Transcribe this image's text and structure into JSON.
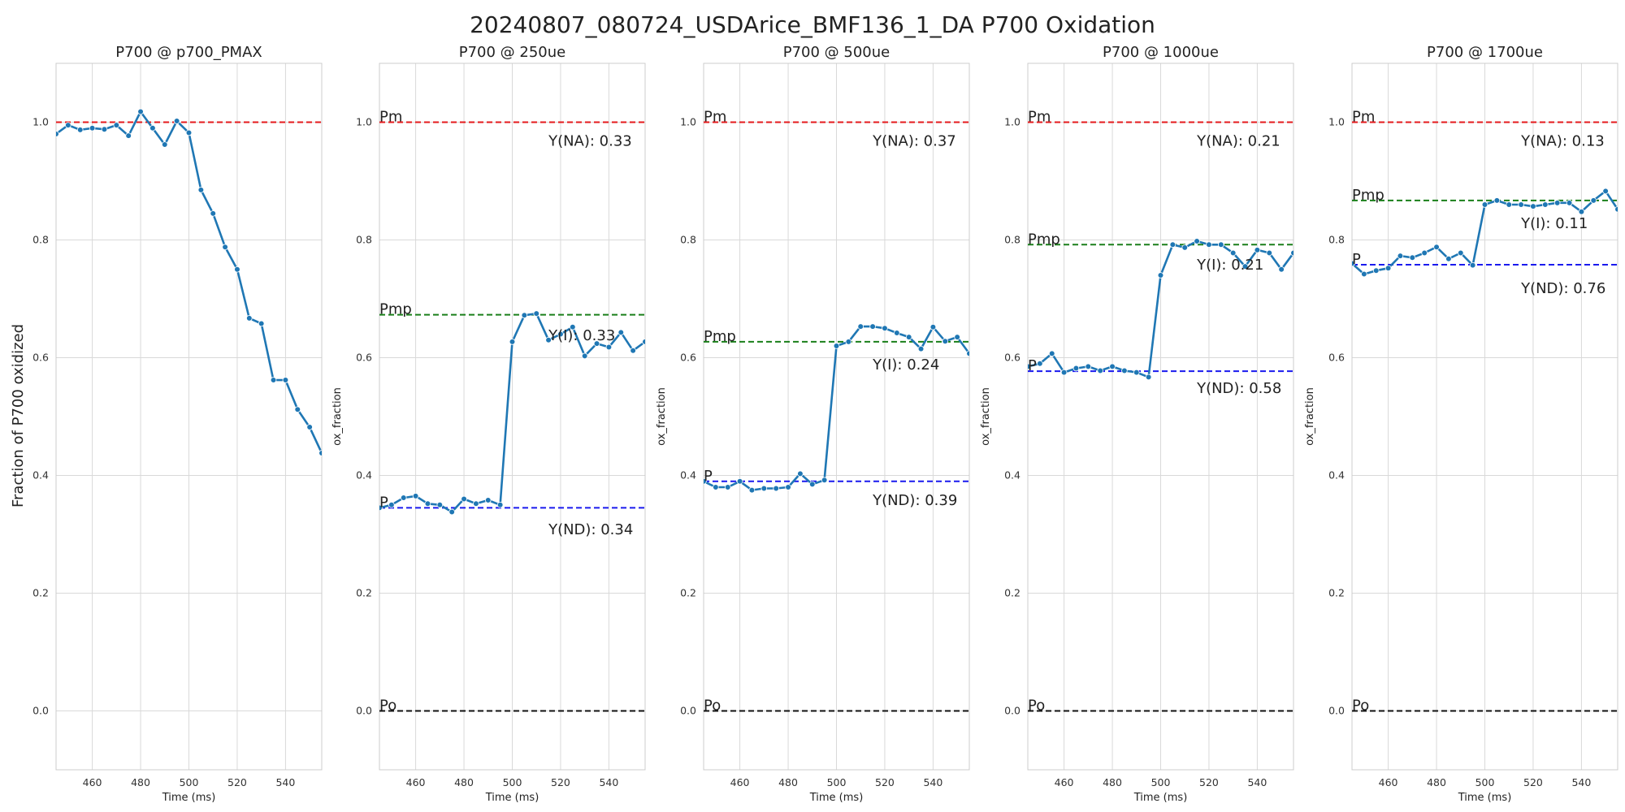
{
  "figure": {
    "suptitle": "20240807_080724_USDArice_BMF136_1_DA P700 Oxidation",
    "shared_ylabel": "Fraction of P700 oxidized"
  },
  "colors": {
    "series": "#1f77b4",
    "pm": "#e41a1c",
    "pmp": "#1a7f1a",
    "p": "#1a1aee",
    "po": "#111111",
    "grid": "#d9d9d9",
    "frame": "#cccccc"
  },
  "chart_data": [
    {
      "type": "line",
      "title": "P700 @ p700_PMAX",
      "xlabel": "Time (ms)",
      "ylabel": "",
      "xlim": [
        445,
        555
      ],
      "ylim": [
        -0.1,
        1.1
      ],
      "xticks": [
        460,
        480,
        500,
        520,
        540
      ],
      "yticks": [
        0.0,
        0.2,
        0.4,
        0.6,
        0.8,
        1.0
      ],
      "grid": true,
      "x": [
        445,
        450,
        455,
        460,
        465,
        470,
        475,
        480,
        485,
        490,
        495,
        500,
        505,
        510,
        515,
        520,
        525,
        530,
        535,
        540,
        545,
        550,
        555
      ],
      "y": [
        0.98,
        0.995,
        0.987,
        0.99,
        0.988,
        0.995,
        0.977,
        1.018,
        0.99,
        0.962,
        1.002,
        0.982,
        0.885,
        0.845,
        0.788,
        0.75,
        0.667,
        0.658,
        0.562,
        0.562,
        0.512,
        0.482,
        0.438
      ],
      "ref_lines": [
        {
          "name": "",
          "label": "",
          "value": 1.0,
          "color": "pm"
        }
      ],
      "annotations": []
    },
    {
      "type": "line",
      "title": "P700 @ 250ue",
      "xlabel": "Time (ms)",
      "ylabel": "ox_fraction",
      "xlim": [
        445,
        555
      ],
      "ylim": [
        -0.1,
        1.1
      ],
      "xticks": [
        460,
        480,
        500,
        520,
        540
      ],
      "yticks": [
        0.0,
        0.2,
        0.4,
        0.6,
        0.8,
        1.0
      ],
      "grid": true,
      "x": [
        445,
        450,
        455,
        460,
        465,
        470,
        475,
        480,
        485,
        490,
        495,
        500,
        505,
        510,
        515,
        520,
        525,
        530,
        535,
        540,
        545,
        550,
        555
      ],
      "y": [
        0.345,
        0.35,
        0.362,
        0.365,
        0.352,
        0.35,
        0.338,
        0.36,
        0.352,
        0.358,
        0.35,
        0.627,
        0.672,
        0.675,
        0.63,
        0.64,
        0.652,
        0.603,
        0.624,
        0.618,
        0.643,
        0.612,
        0.627
      ],
      "ref_lines": [
        {
          "name": "Pm",
          "label": "Pm",
          "value": 1.0,
          "color": "pm"
        },
        {
          "name": "Pmp",
          "label": "Pmp",
          "value": 0.673,
          "color": "pmp"
        },
        {
          "name": "P",
          "label": "P",
          "value": 0.345,
          "color": "p"
        },
        {
          "name": "Po",
          "label": "Po",
          "value": 0.0,
          "color": "po"
        }
      ],
      "annotations": [
        {
          "text": "Y(NA): 0.33",
          "x": 515,
          "y": 0.96
        },
        {
          "text": "Y(I): 0.33",
          "x": 515,
          "y": 0.63
        },
        {
          "text": "Y(ND): 0.34",
          "x": 515,
          "y": 0.3
        }
      ]
    },
    {
      "type": "line",
      "title": "P700 @ 500ue",
      "xlabel": "Time (ms)",
      "ylabel": "ox_fraction",
      "xlim": [
        445,
        555
      ],
      "ylim": [
        -0.1,
        1.1
      ],
      "xticks": [
        460,
        480,
        500,
        520,
        540
      ],
      "yticks": [
        0.0,
        0.2,
        0.4,
        0.6,
        0.8,
        1.0
      ],
      "grid": true,
      "x": [
        445,
        450,
        455,
        460,
        465,
        470,
        475,
        480,
        485,
        490,
        495,
        500,
        505,
        510,
        515,
        520,
        525,
        530,
        535,
        540,
        545,
        550,
        555
      ],
      "y": [
        0.39,
        0.38,
        0.38,
        0.39,
        0.375,
        0.378,
        0.378,
        0.38,
        0.403,
        0.385,
        0.392,
        0.62,
        0.627,
        0.653,
        0.653,
        0.65,
        0.642,
        0.635,
        0.615,
        0.652,
        0.628,
        0.635,
        0.607
      ],
      "ref_lines": [
        {
          "name": "Pm",
          "label": "Pm",
          "value": 1.0,
          "color": "pm"
        },
        {
          "name": "Pmp",
          "label": "Pmp",
          "value": 0.627,
          "color": "pmp"
        },
        {
          "name": "P",
          "label": "P",
          "value": 0.39,
          "color": "p"
        },
        {
          "name": "Po",
          "label": "Po",
          "value": 0.0,
          "color": "po"
        }
      ],
      "annotations": [
        {
          "text": "Y(NA): 0.37",
          "x": 515,
          "y": 0.96
        },
        {
          "text": "Y(I): 0.24",
          "x": 515,
          "y": 0.58
        },
        {
          "text": "Y(ND): 0.39",
          "x": 515,
          "y": 0.35
        }
      ]
    },
    {
      "type": "line",
      "title": "P700 @ 1000ue",
      "xlabel": "Time (ms)",
      "ylabel": "ox_fraction",
      "xlim": [
        445,
        555
      ],
      "ylim": [
        -0.1,
        1.1
      ],
      "xticks": [
        460,
        480,
        500,
        520,
        540
      ],
      "yticks": [
        0.0,
        0.2,
        0.4,
        0.6,
        0.8,
        1.0
      ],
      "grid": true,
      "x": [
        445,
        450,
        455,
        460,
        465,
        470,
        475,
        480,
        485,
        490,
        495,
        500,
        505,
        510,
        515,
        520,
        525,
        530,
        535,
        540,
        545,
        550,
        555
      ],
      "y": [
        0.585,
        0.59,
        0.607,
        0.575,
        0.582,
        0.585,
        0.578,
        0.585,
        0.578,
        0.575,
        0.567,
        0.74,
        0.792,
        0.787,
        0.798,
        0.792,
        0.792,
        0.778,
        0.755,
        0.783,
        0.778,
        0.75,
        0.778
      ],
      "ref_lines": [
        {
          "name": "Pm",
          "label": "Pm",
          "value": 1.0,
          "color": "pm"
        },
        {
          "name": "Pmp",
          "label": "Pmp",
          "value": 0.792,
          "color": "pmp"
        },
        {
          "name": "P",
          "label": "P",
          "value": 0.577,
          "color": "p"
        },
        {
          "name": "Po",
          "label": "Po",
          "value": 0.0,
          "color": "po"
        }
      ],
      "annotations": [
        {
          "text": "Y(NA): 0.21",
          "x": 515,
          "y": 0.96
        },
        {
          "text": "Y(I): 0.21",
          "x": 515,
          "y": 0.75
        },
        {
          "text": "Y(ND): 0.58",
          "x": 515,
          "y": 0.54
        }
      ]
    },
    {
      "type": "line",
      "title": "P700 @ 1700ue",
      "xlabel": "Time (ms)",
      "ylabel": "ox_fraction",
      "xlim": [
        445,
        555
      ],
      "ylim": [
        -0.1,
        1.1
      ],
      "xticks": [
        460,
        480,
        500,
        520,
        540
      ],
      "yticks": [
        0.0,
        0.2,
        0.4,
        0.6,
        0.8,
        1.0
      ],
      "grid": true,
      "x": [
        445,
        450,
        455,
        460,
        465,
        470,
        475,
        480,
        485,
        490,
        495,
        500,
        505,
        510,
        515,
        520,
        525,
        530,
        535,
        540,
        545,
        550,
        555
      ],
      "y": [
        0.76,
        0.742,
        0.748,
        0.752,
        0.773,
        0.77,
        0.778,
        0.788,
        0.768,
        0.778,
        0.757,
        0.86,
        0.867,
        0.86,
        0.86,
        0.857,
        0.86,
        0.863,
        0.863,
        0.848,
        0.867,
        0.883,
        0.852
      ],
      "ref_lines": [
        {
          "name": "Pm",
          "label": "Pm",
          "value": 1.0,
          "color": "pm"
        },
        {
          "name": "Pmp",
          "label": "Pmp",
          "value": 0.867,
          "color": "pmp"
        },
        {
          "name": "P",
          "label": "P",
          "value": 0.758,
          "color": "p"
        },
        {
          "name": "Po",
          "label": "Po",
          "value": 0.0,
          "color": "po"
        }
      ],
      "annotations": [
        {
          "text": "Y(NA): 0.13",
          "x": 515,
          "y": 0.96
        },
        {
          "text": "Y(I): 0.11",
          "x": 515,
          "y": 0.82
        },
        {
          "text": "Y(ND): 0.76",
          "x": 515,
          "y": 0.71
        }
      ]
    }
  ]
}
